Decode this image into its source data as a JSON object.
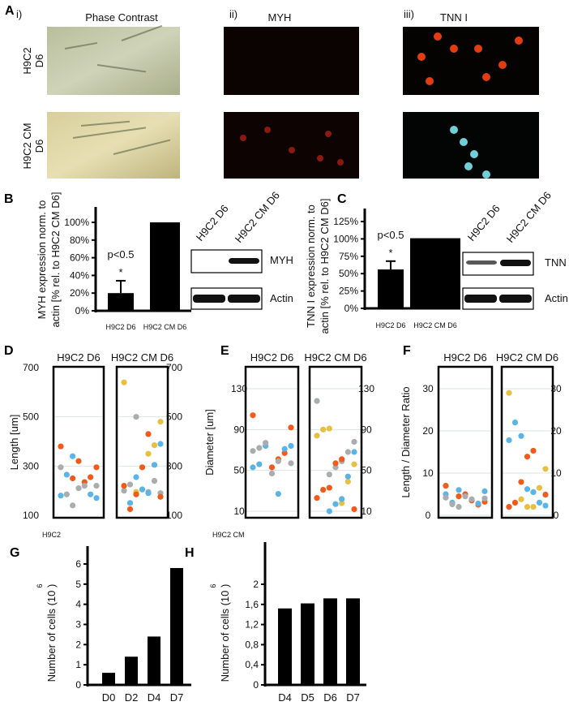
{
  "panel_letters": {
    "A": "A",
    "B": "B",
    "C": "C",
    "D": "D",
    "E": "E",
    "F": "F",
    "G": "G",
    "H": "H"
  },
  "panel_a": {
    "columns": [
      {
        "num": "i)",
        "title": "Phase Contrast"
      },
      {
        "num": "ii)",
        "title": "MYH"
      },
      {
        "num": "iii)",
        "title": "TNN I"
      }
    ],
    "rows": [
      "H9C2 D6",
      "H9C2 CM D6"
    ]
  },
  "colors": {
    "orange": "#f05a1a",
    "blue": "#5ab4e6",
    "gray": "#a9adae",
    "yellow": "#e8c040",
    "bar": "#000000"
  },
  "chart_data": [
    {
      "id": "B",
      "type": "bar",
      "ylabel_lines": [
        "MYH expression norm. to",
        "actin [% rel. to H9C2 CM D6]"
      ],
      "categories": [
        "H9C2 D6",
        "H9C2 CM  D6"
      ],
      "values": [
        20,
        100
      ],
      "errors": [
        14,
        0
      ],
      "ylim": [
        0,
        100
      ],
      "yticks": [
        "0%",
        "20%",
        "40%",
        "60%",
        "80%",
        "100%"
      ],
      "ytick_values": [
        0,
        20,
        40,
        60,
        80,
        100
      ],
      "annotation": {
        "p": "p<0.5",
        "star": "*"
      },
      "blot": {
        "lanes": [
          "H9C2 D6",
          "H9C2 CM D6"
        ],
        "bands": [
          "MYH",
          "Actin"
        ]
      }
    },
    {
      "id": "C",
      "type": "bar",
      "ylabel_lines": [
        "TNN I expression norm. to",
        "actin [% rel. to H9C2 CM D6]"
      ],
      "categories": [
        "H9C2 D6",
        "H9C2 CM D6"
      ],
      "values": [
        56,
        101
      ],
      "errors": [
        12,
        0
      ],
      "ylim": [
        0,
        125
      ],
      "yticks": [
        "0%",
        "25%",
        "50%",
        "75%",
        "100%",
        "125%"
      ],
      "ytick_values": [
        0,
        25,
        50,
        75,
        100,
        125
      ],
      "annotation": {
        "p": "p<0.5",
        "star": "*"
      },
      "blot": {
        "lanes": [
          "H9C2 D6",
          "H9C2 CM D6"
        ],
        "bands": [
          "TNN I",
          "Actin"
        ]
      }
    },
    {
      "id": "D",
      "type": "scatter",
      "ylabel": "Length [um]",
      "ylim": [
        100,
        700
      ],
      "yticks": [
        100,
        300,
        500,
        700
      ],
      "grid": true,
      "groups": [
        {
          "name": "H9C2 D6",
          "series": {
            "orange": [
              380,
              295,
              255,
              235,
              320,
              250
            ],
            "blue": [
              340,
              265,
              180,
              170,
              185
            ],
            "gray": [
              220,
              210,
              140,
              185,
              295,
              220
            ]
          }
        },
        {
          "name": "H9C2 CM D6",
          "series": {
            "yellow": [
              640,
              480,
              385,
              350,
              205,
              195
            ],
            "gray": [
              500,
              225,
              200,
              190,
              240,
              195
            ],
            "orange": [
              430,
              295,
              185,
              125,
              220,
              175
            ],
            "blue": [
              390,
              305,
              190,
              205,
              255,
              150
            ]
          }
        }
      ]
    },
    {
      "id": "E",
      "type": "scatter",
      "ylabel": "Diameter [um]",
      "ylim": [
        10,
        130
      ],
      "yticks": [
        10,
        50,
        90,
        130
      ],
      "grid": true,
      "groups": [
        {
          "name": "H9C2 D6",
          "series": {
            "orange": [
              104,
              92,
              67,
              61,
              53
            ],
            "blue": [
              74,
              56,
              53,
              74,
              71,
              27
            ],
            "gray": [
              59,
              47,
              77,
              72,
              69,
              57
            ]
          }
        },
        {
          "name": "H9C2 CM D6",
          "series": {
            "gray": [
              118,
              78,
              68,
              59,
              53,
              46
            ],
            "yellow": [
              91,
              90,
              84,
              56,
              39,
              18
            ],
            "orange": [
              61,
              57,
              33,
              31,
              23,
              12
            ],
            "blue": [
              68,
              44,
              22,
              17,
              10
            ]
          }
        }
      ]
    },
    {
      "id": "F",
      "type": "scatter",
      "ylabel": "Length / Diameter Ratio",
      "ylim": [
        0,
        30
      ],
      "yticks": [
        0,
        10,
        20,
        30
      ],
      "grid": true,
      "groups": [
        {
          "name": "H9C2 D6",
          "series": {
            "orange": [
              7,
              3.2,
              2.5,
              3.5,
              5,
              4.5
            ],
            "blue": [
              6,
              3,
              5,
              5.7,
              2.8
            ],
            "gray": [
              3.8,
              4.5,
              2,
              2.6,
              4.2,
              4
            ]
          }
        },
        {
          "name": "H9C2 CM D6",
          "series": {
            "yellow": [
              29,
              11,
              6.5,
              2,
              2,
              3.8
            ],
            "blue": [
              18.8,
              22,
              17.8,
              2.3,
              3,
              5.5,
              6.2
            ],
            "orange": [
              15.3,
              13.9,
              7.9,
              3,
              2,
              4.9
            ]
          }
        }
      ]
    },
    {
      "id": "G",
      "type": "bar",
      "title": "H9C2",
      "ylabel": "Number of cells (10  )",
      "ylabel_exp": "6",
      "categories": [
        "D0",
        "D2",
        "D4",
        "D7"
      ],
      "values": [
        0.6,
        1.4,
        2.4,
        5.8
      ],
      "ylim": [
        0,
        6
      ],
      "yticks": [
        "0",
        "1",
        "2",
        "3",
        "4",
        "5",
        "6"
      ],
      "ytick_values": [
        0,
        1,
        2,
        3,
        4,
        5,
        6
      ]
    },
    {
      "id": "H",
      "type": "bar",
      "title": "H9C2 CM",
      "ylabel": "Number of cells (10  )",
      "ylabel_exp": "6",
      "categories": [
        "D4",
        "D5",
        "D6",
        "D7"
      ],
      "values": [
        1.52,
        1.62,
        1.72,
        1.72
      ],
      "ylim": [
        0,
        2
      ],
      "yticks": [
        "0",
        "0,4",
        "0,8",
        "1,2",
        "1,6",
        "2"
      ],
      "ytick_values": [
        0,
        0.4,
        0.8,
        1.2,
        1.6,
        2
      ]
    }
  ]
}
